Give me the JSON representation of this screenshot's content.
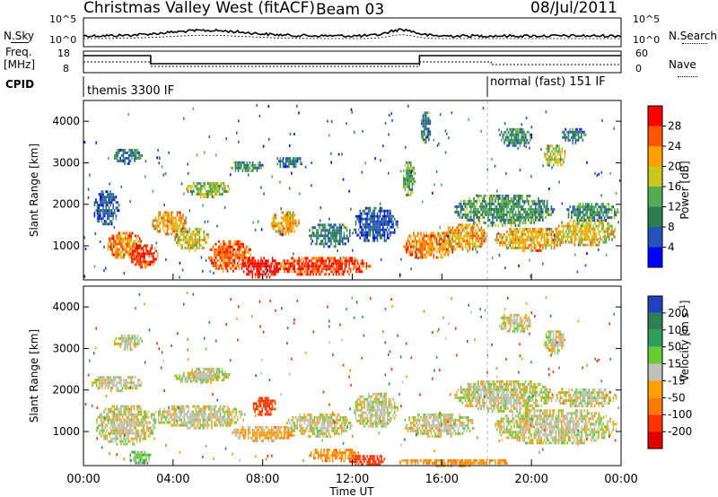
{
  "header": {
    "title": "Christmas Valley West (fitACF)",
    "beam": "Beam 03",
    "date": "08/Jul/2011"
  },
  "top_panel": {
    "left_label": "N.Sky",
    "right_label": "N.Search",
    "left_ticks": [
      "10^5",
      "10^0"
    ],
    "right_ticks": [
      "10^5",
      "10^0"
    ]
  },
  "freq_panel": {
    "left_label_1": "Freq.",
    "left_label_2": "[MHz]",
    "right_label": "Nave",
    "left_ticks": [
      "18",
      "8"
    ],
    "right_ticks": [
      "60",
      "0"
    ]
  },
  "cpid": {
    "label": "CPID",
    "segments": [
      {
        "text": "themis 3300 IF",
        "start_hour": 0,
        "end_hour": 18.2
      },
      {
        "text": "normal (fast) 151 IF",
        "start_hour": 18.2,
        "end_hour": 24
      }
    ]
  },
  "x_axis": {
    "label": "Time UT",
    "ticks": [
      "00:00",
      "04:00",
      "08:00",
      "12:00",
      "16:00",
      "20:00",
      "00:00"
    ]
  },
  "power_panel": {
    "ylabel": "Slant Range [km]",
    "yticks": [
      "1000",
      "2000",
      "3000",
      "4000"
    ],
    "colorbar_label": "Power [dB]",
    "colorbar_ticks": [
      "4",
      "8",
      "12",
      "16",
      "20",
      "24",
      "28"
    ],
    "colorbar_colors": [
      "#0000ff",
      "#2255bb",
      "#2e7d4f",
      "#55aa55",
      "#c8c81e",
      "#ffa000",
      "#ff5500",
      "#ff0000"
    ]
  },
  "velocity_panel": {
    "ylabel": "Slant Range [km]",
    "yticks": [
      "1000",
      "2000",
      "3000",
      "4000"
    ],
    "colorbar_label": "Velocity [m s^-1]",
    "colorbar_ticks": [
      "200",
      "100",
      "50",
      "15",
      "-15",
      "-50",
      "-100",
      "-200"
    ],
    "colorbar_colors": [
      "#2040c0",
      "#2e8050",
      "#2a9e5a",
      "#66cc33",
      "#c0c0b8",
      "#ffa000",
      "#ff7a00",
      "#ff3300",
      "#e00000"
    ]
  },
  "chart_data": {
    "type": "heatmap",
    "title": "Christmas Valley West (fitACF)",
    "subtitle": "Beam 03",
    "date": "08/Jul/2011",
    "xlabel": "Time UT",
    "x_unit": "hours UT",
    "xlim": [
      0,
      24
    ],
    "ylabel": "Slant Range [km]",
    "ylim": [
      180,
      4500
    ],
    "panels": [
      {
        "name": "Power [dB]",
        "clim": [
          0,
          30
        ],
        "regions": [
          {
            "t0": 0.4,
            "t1": 1.6,
            "r0": 1500,
            "r1": 2400,
            "level": 6
          },
          {
            "t0": 1.0,
            "t1": 2.6,
            "r0": 700,
            "r1": 1400,
            "level": 22
          },
          {
            "t0": 2.0,
            "t1": 3.3,
            "r0": 500,
            "r1": 1100,
            "level": 27
          },
          {
            "t0": 3.0,
            "t1": 4.6,
            "r0": 1300,
            "r1": 1900,
            "level": 20
          },
          {
            "t0": 4.0,
            "t1": 5.6,
            "r0": 900,
            "r1": 1500,
            "level": 18
          },
          {
            "t0": 5.5,
            "t1": 7.5,
            "r0": 400,
            "r1": 1200,
            "level": 24
          },
          {
            "t0": 7.0,
            "t1": 8.8,
            "r0": 250,
            "r1": 800,
            "level": 28
          },
          {
            "t0": 8.3,
            "t1": 9.6,
            "r0": 1300,
            "r1": 1900,
            "level": 20
          },
          {
            "t0": 8.5,
            "t1": 12.8,
            "r0": 300,
            "r1": 800,
            "level": 26
          },
          {
            "t0": 10.0,
            "t1": 12.0,
            "r0": 1000,
            "r1": 1600,
            "level": 9
          },
          {
            "t0": 12.0,
            "t1": 14.0,
            "r0": 1100,
            "r1": 2000,
            "level": 6
          },
          {
            "t0": 14.2,
            "t1": 16.6,
            "r0": 700,
            "r1": 1400,
            "level": 22
          },
          {
            "t0": 16.0,
            "t1": 18.0,
            "r0": 900,
            "r1": 1600,
            "level": 20
          },
          {
            "t0": 16.5,
            "t1": 21.0,
            "r0": 1500,
            "r1": 2300,
            "level": 11
          },
          {
            "t0": 18.3,
            "t1": 21.5,
            "r0": 900,
            "r1": 1500,
            "level": 20
          },
          {
            "t0": 21.0,
            "t1": 23.8,
            "r0": 1000,
            "r1": 1700,
            "level": 18
          },
          {
            "t0": 21.5,
            "t1": 23.9,
            "r0": 1600,
            "r1": 2100,
            "level": 10
          },
          {
            "t0": 4.5,
            "t1": 6.5,
            "r0": 2200,
            "r1": 2600,
            "level": 15
          },
          {
            "t0": 6.5,
            "t1": 8.0,
            "r0": 2800,
            "r1": 3100,
            "level": 10
          },
          {
            "t0": 8.5,
            "t1": 9.8,
            "r0": 2900,
            "r1": 3200,
            "level": 8
          },
          {
            "t0": 1.3,
            "t1": 2.6,
            "r0": 3000,
            "r1": 3400,
            "level": 8
          },
          {
            "t0": 18.5,
            "t1": 20.0,
            "r0": 3400,
            "r1": 3900,
            "level": 10
          },
          {
            "t0": 20.5,
            "t1": 21.5,
            "r0": 2900,
            "r1": 3500,
            "level": 16
          },
          {
            "t0": 21.3,
            "t1": 22.4,
            "r0": 3500,
            "r1": 3900,
            "level": 9
          },
          {
            "t0": 14.2,
            "t1": 14.8,
            "r0": 2200,
            "r1": 3100,
            "level": 12
          },
          {
            "t0": 15.0,
            "t1": 15.5,
            "r0": 3500,
            "r1": 4300,
            "level": 8
          }
        ]
      },
      {
        "name": "Velocity [m s^-1]",
        "clim": [
          -200,
          200
        ],
        "regions": [
          {
            "t0": 0.3,
            "t1": 2.6,
            "r0": 2000,
            "r1": 2400,
            "level": 0
          },
          {
            "t0": 0.5,
            "t1": 3.2,
            "r0": 700,
            "r1": 1700,
            "level": 0
          },
          {
            "t0": 3.0,
            "t1": 7.2,
            "r0": 1100,
            "r1": 1700,
            "level": 0
          },
          {
            "t0": 4.0,
            "t1": 6.0,
            "r0": 2200,
            "r1": 2500,
            "level": 0
          },
          {
            "t0": 7.5,
            "t1": 8.6,
            "r0": 1400,
            "r1": 1900,
            "level": -130
          },
          {
            "t0": 6.5,
            "t1": 9.5,
            "r0": 800,
            "r1": 1200,
            "level": -30
          },
          {
            "t0": 9.0,
            "t1": 12.0,
            "r0": 900,
            "r1": 1500,
            "level": 0
          },
          {
            "t0": 10.0,
            "t1": 12.3,
            "r0": 300,
            "r1": 650,
            "level": -60
          },
          {
            "t0": 11.8,
            "t1": 13.5,
            "r0": 200,
            "r1": 500,
            "level": -150
          },
          {
            "t0": 12.0,
            "t1": 14.0,
            "r0": 1100,
            "r1": 2000,
            "level": 0
          },
          {
            "t0": 2.0,
            "t1": 3.0,
            "r0": 250,
            "r1": 600,
            "level": 30
          },
          {
            "t0": 14.2,
            "t1": 17.5,
            "r0": 900,
            "r1": 1500,
            "level": 0
          },
          {
            "t0": 16.5,
            "t1": 21.0,
            "r0": 1500,
            "r1": 2300,
            "level": 0
          },
          {
            "t0": 18.3,
            "t1": 23.8,
            "r0": 700,
            "r1": 1600,
            "level": 0
          },
          {
            "t0": 21.0,
            "t1": 23.8,
            "r0": 1600,
            "r1": 2100,
            "level": 0
          },
          {
            "t0": 14.0,
            "t1": 19.0,
            "r0": 200,
            "r1": 400,
            "level": -50
          },
          {
            "t0": 4.5,
            "t1": 6.5,
            "r0": 2200,
            "r1": 2600,
            "level": 0
          },
          {
            "t0": 18.5,
            "t1": 20.0,
            "r0": 3400,
            "r1": 3900,
            "level": 0
          },
          {
            "t0": 20.5,
            "t1": 21.5,
            "r0": 2900,
            "r1": 3500,
            "level": 0
          },
          {
            "t0": 1.3,
            "t1": 2.6,
            "r0": 3000,
            "r1": 3400,
            "level": 0
          }
        ]
      }
    ]
  }
}
